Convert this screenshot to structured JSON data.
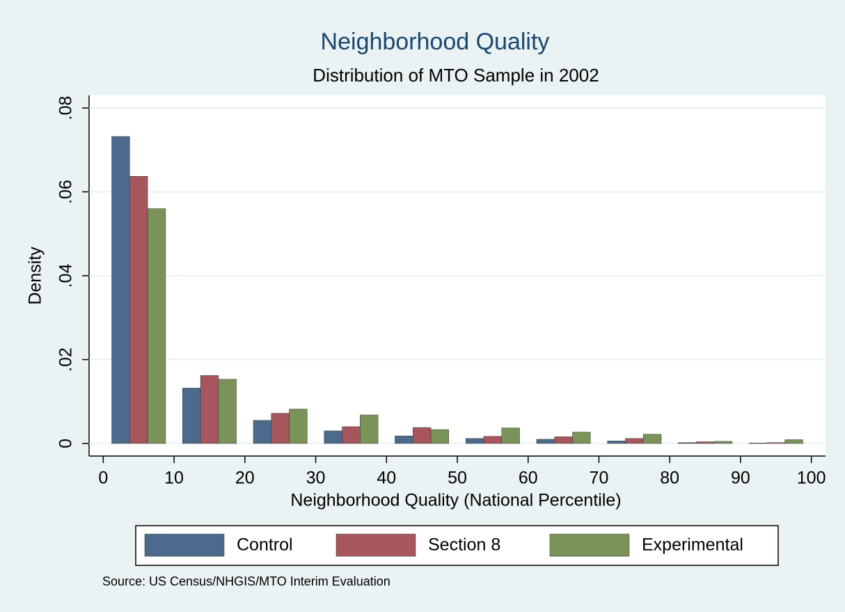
{
  "chart_data": {
    "type": "bar",
    "title": "Neighborhood Quality",
    "subtitle": "Distribution of MTO Sample in 2002",
    "x_label": "Neighborhood Quality (National Percentile)",
    "y_label": "Density",
    "note": "Source: US Census/NHGIS/MTO Interim Evaluation",
    "x": [
      0,
      10,
      20,
      30,
      40,
      50,
      60,
      70,
      80,
      90
    ],
    "series": [
      {
        "name": "Control",
        "color": "#4c6b8c",
        "values": [
          0.0732,
          0.0132,
          0.0055,
          0.003,
          0.0018,
          0.0012,
          0.001,
          0.0006,
          0.0002,
          0.0001
        ]
      },
      {
        "name": "Section 8",
        "color": "#a8565d",
        "values": [
          0.0637,
          0.0162,
          0.0072,
          0.004,
          0.0038,
          0.0017,
          0.0016,
          0.0012,
          0.0004,
          0.0002
        ]
      },
      {
        "name": "Experimental",
        "color": "#7a9358",
        "values": [
          0.056,
          0.0153,
          0.0082,
          0.0068,
          0.0033,
          0.0037,
          0.0027,
          0.0022,
          0.0005,
          0.0009
        ]
      }
    ],
    "xlim": [
      -2,
      102
    ],
    "xticks": [
      0,
      10,
      20,
      30,
      40,
      50,
      60,
      70,
      80,
      90,
      100
    ],
    "ylim": [
      -0.003,
      0.083
    ],
    "yticks": [
      0,
      {
        "value": 0.02,
        "label": ".02"
      },
      {
        "value": 0.04,
        "label": ".04"
      },
      {
        "value": 0.06,
        "label": ".06"
      },
      {
        "value": 0.08,
        "label": ".08"
      }
    ],
    "grid": true
  }
}
